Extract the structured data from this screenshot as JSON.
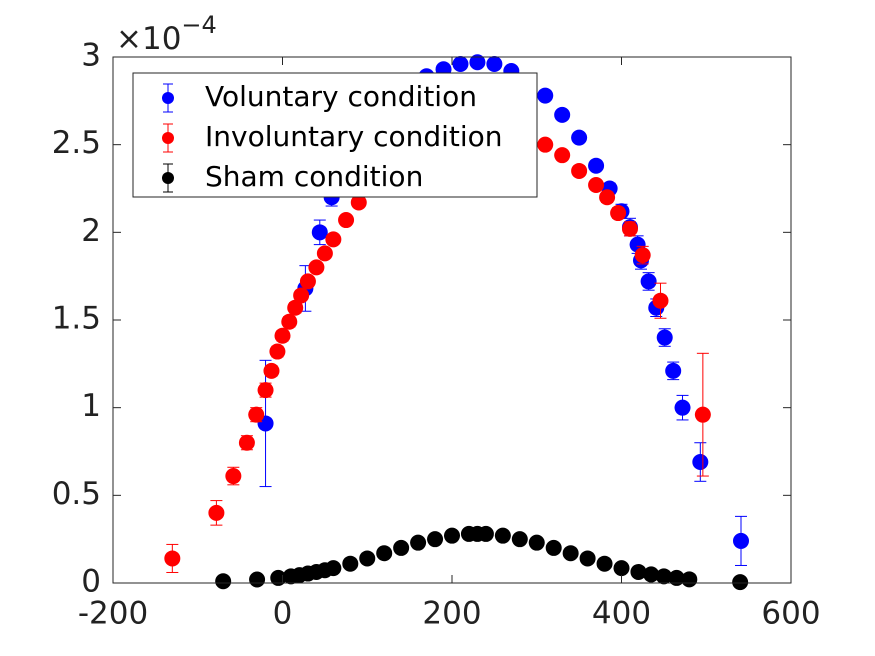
{
  "chart_data": {
    "type": "errorbar",
    "y_multiplier": "×10",
    "y_exponent": "−4",
    "xlim": [
      -200,
      600
    ],
    "xticks": [
      -200,
      0,
      200,
      400,
      600
    ],
    "ylim": [
      0,
      3
    ],
    "yticks": [
      0,
      0.5,
      1,
      1.5,
      2,
      2.5,
      3
    ],
    "grid": false,
    "legend": "northwest",
    "series": [
      {
        "name": "Voluntary condition",
        "color": "#0000ff",
        "x": [
          -20,
          27,
          44,
          58,
          77,
          90,
          110,
          130,
          150,
          170,
          190,
          210,
          230,
          250,
          270,
          290,
          310,
          330,
          350,
          370,
          386,
          400,
          410,
          419,
          423,
          432,
          441,
          451,
          461,
          472,
          493,
          541
        ],
        "values": [
          0.91,
          1.68,
          2.0,
          2.2,
          2.4,
          2.51,
          2.63,
          2.74,
          2.82,
          2.89,
          2.93,
          2.96,
          2.97,
          2.96,
          2.92,
          2.86,
          2.78,
          2.67,
          2.54,
          2.38,
          2.25,
          2.12,
          2.03,
          1.93,
          1.84,
          1.72,
          1.57,
          1.4,
          1.21,
          1.0,
          0.69,
          0.24
        ],
        "errors": [
          0.36,
          0.13,
          0.07,
          0.05,
          0.03,
          0.02,
          0.02,
          0.02,
          0.02,
          0.02,
          0.02,
          0.02,
          0.02,
          0.02,
          0.02,
          0.02,
          0.02,
          0.02,
          0.02,
          0.02,
          0.03,
          0.04,
          0.05,
          0.05,
          0.05,
          0.05,
          0.05,
          0.05,
          0.05,
          0.07,
          0.11,
          0.14
        ]
      },
      {
        "name": "Involuntary condition",
        "color": "#ff0000",
        "x": [
          -130,
          -78,
          -58,
          -42,
          -31,
          -20,
          -13,
          -6,
          0,
          8,
          15,
          22,
          30,
          40,
          50,
          60,
          75,
          90,
          110,
          130,
          150,
          170,
          190,
          210,
          230,
          250,
          270,
          290,
          310,
          330,
          350,
          370,
          383,
          396,
          410,
          425,
          446,
          496
        ],
        "values": [
          0.14,
          0.4,
          0.61,
          0.8,
          0.96,
          1.1,
          1.21,
          1.32,
          1.41,
          1.49,
          1.57,
          1.64,
          1.72,
          1.8,
          1.88,
          1.96,
          2.07,
          2.17,
          2.29,
          2.39,
          2.47,
          2.54,
          2.58,
          2.61,
          2.62,
          2.61,
          2.59,
          2.55,
          2.5,
          2.44,
          2.35,
          2.27,
          2.2,
          2.11,
          2.02,
          1.87,
          1.61,
          0.96
        ],
        "errors": [
          0.08,
          0.07,
          0.05,
          0.04,
          0.04,
          0.04,
          0.03,
          0.03,
          0.03,
          0.03,
          0.03,
          0.02,
          0.02,
          0.02,
          0.02,
          0.02,
          0.02,
          0.02,
          0.02,
          0.02,
          0.02,
          0.02,
          0.02,
          0.02,
          0.02,
          0.02,
          0.02,
          0.02,
          0.02,
          0.02,
          0.02,
          0.02,
          0.03,
          0.03,
          0.04,
          0.05,
          0.1,
          0.35
        ]
      },
      {
        "name": "Sham condition",
        "color": "#000000",
        "x": [
          -70,
          -30,
          -5,
          10,
          20,
          30,
          40,
          50,
          60,
          80,
          100,
          120,
          140,
          160,
          180,
          200,
          220,
          230,
          240,
          260,
          280,
          300,
          320,
          340,
          360,
          380,
          400,
          420,
          435,
          450,
          465,
          480,
          540
        ],
        "values": [
          0.01,
          0.02,
          0.029,
          0.038,
          0.045,
          0.054,
          0.063,
          0.073,
          0.085,
          0.11,
          0.14,
          0.17,
          0.2,
          0.23,
          0.25,
          0.27,
          0.28,
          0.28,
          0.28,
          0.27,
          0.25,
          0.23,
          0.2,
          0.17,
          0.14,
          0.11,
          0.085,
          0.063,
          0.049,
          0.038,
          0.029,
          0.021,
          0.005
        ],
        "errors": [
          0.005,
          0.005,
          0.005,
          0.005,
          0.005,
          0.005,
          0.005,
          0.005,
          0.005,
          0.005,
          0.005,
          0.005,
          0.005,
          0.005,
          0.005,
          0.005,
          0.005,
          0.005,
          0.005,
          0.005,
          0.005,
          0.005,
          0.005,
          0.005,
          0.005,
          0.005,
          0.005,
          0.005,
          0.005,
          0.005,
          0.005,
          0.005,
          0.005
        ]
      }
    ]
  }
}
